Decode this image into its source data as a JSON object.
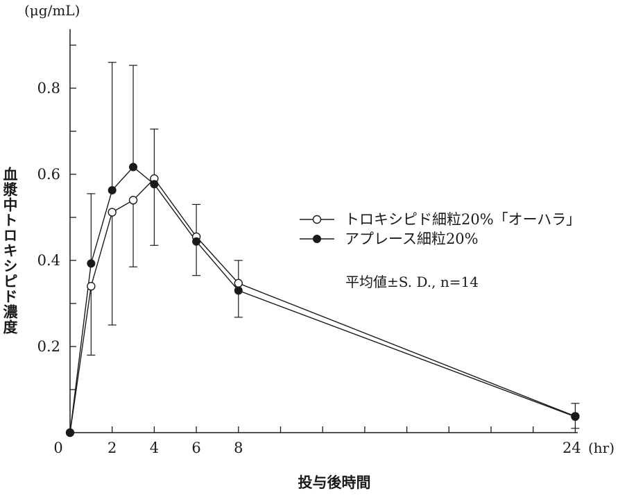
{
  "chart_data": {
    "type": "line",
    "y_unit": "(μg/mL)",
    "x_unit": "(hr)",
    "xlabel": "投与後時間",
    "ylabel": "血漿中トロキシピド濃度",
    "xlim": [
      0,
      24
    ],
    "ylim": [
      0,
      0.9
    ],
    "x_tick_labels": [
      "0",
      "2",
      "4",
      "6",
      "8",
      "24"
    ],
    "y_tick_labels": [
      "0.2",
      "0.4",
      "0.6",
      "0.8"
    ],
    "annotation": "平均値±S. D., n=14",
    "legend_position": "right",
    "grid": false,
    "series": [
      {
        "name": "トロキシピド細粒20%「オーハラ」",
        "marker": "open-circle",
        "x": [
          0,
          1,
          2,
          3,
          4,
          6,
          8,
          24
        ],
        "y": [
          0.0,
          0.34,
          0.512,
          0.54,
          0.59,
          0.455,
          0.347,
          0.038
        ],
        "err_low": [
          null,
          0.18,
          0.25,
          0.385,
          0.435,
          null,
          null,
          null
        ],
        "err_high": [
          null,
          null,
          null,
          null,
          0.705,
          0.53,
          0.4,
          0.068
        ]
      },
      {
        "name": "アプレース細粒20%",
        "marker": "filled-circle",
        "x": [
          0,
          1,
          2,
          3,
          4,
          6,
          8,
          24
        ],
        "y": [
          0.0,
          0.393,
          0.563,
          0.617,
          0.577,
          0.444,
          0.33,
          0.037
        ],
        "err_low": [
          null,
          null,
          null,
          null,
          null,
          0.365,
          0.268,
          0.01
        ],
        "err_high": [
          null,
          0.555,
          0.86,
          0.853,
          null,
          null,
          null,
          null
        ]
      }
    ]
  }
}
